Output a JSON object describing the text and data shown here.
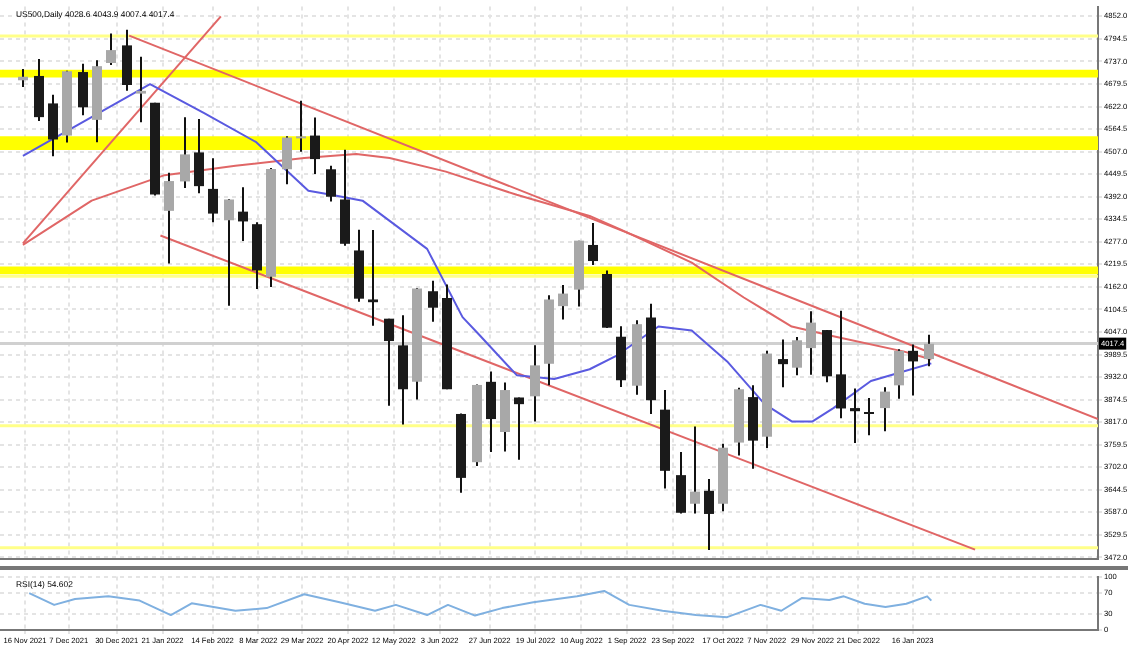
{
  "chart_data": [
    {
      "type": "candlestick",
      "title": "US500,Daily 4028.6 4043.9 4007.4 4017.4",
      "x": [
        "2021-11-15",
        "2021-11-22",
        "2021-11-29",
        "2021-12-06",
        "2021-12-13",
        "2021-12-20",
        "2021-12-27",
        "2022-01-03",
        "2022-01-10",
        "2022-01-17",
        "2022-01-24",
        "2022-01-31",
        "2022-02-07",
        "2022-02-14",
        "2022-02-21",
        "2022-02-28",
        "2022-03-07",
        "2022-03-14",
        "2022-03-21",
        "2022-03-28",
        "2022-04-04",
        "2022-04-11",
        "2022-04-18",
        "2022-04-25",
        "2022-05-02",
        "2022-05-09",
        "2022-05-16",
        "2022-05-23",
        "2022-05-30",
        "2022-06-06",
        "2022-06-13",
        "2022-06-20",
        "2022-06-27",
        "2022-07-04",
        "2022-07-11",
        "2022-07-18",
        "2022-07-25",
        "2022-08-01",
        "2022-08-08",
        "2022-08-15",
        "2022-08-22",
        "2022-08-29",
        "2022-09-05",
        "2022-09-12",
        "2022-09-19",
        "2022-09-26",
        "2022-10-03",
        "2022-10-10",
        "2022-10-17",
        "2022-10-24",
        "2022-10-31",
        "2022-11-07",
        "2022-11-14",
        "2022-11-21",
        "2022-11-28",
        "2022-12-05",
        "2022-12-12",
        "2022-12-19",
        "2022-12-26",
        "2023-01-02",
        "2023-01-09",
        "2023-01-16",
        "2023-01-23"
      ],
      "ohlc": [
        [
          4689,
          4718,
          4672,
          4698
        ],
        [
          4700,
          4743,
          4585,
          4595
        ],
        [
          4630,
          4652,
          4495,
          4538
        ],
        [
          4548,
          4713,
          4530,
          4712
        ],
        [
          4710,
          4731,
          4600,
          4620
        ],
        [
          4588,
          4740,
          4531,
          4725
        ],
        [
          4733,
          4808,
          4728,
          4766
        ],
        [
          4778,
          4818,
          4662,
          4677
        ],
        [
          4655,
          4749,
          4582,
          4662
        ],
        [
          4632,
          4632,
          4395,
          4398
        ],
        [
          4356,
          4453,
          4222,
          4432
        ],
        [
          4431,
          4595,
          4414,
          4500
        ],
        [
          4505,
          4590,
          4401,
          4419
        ],
        [
          4412,
          4490,
          4327,
          4349
        ],
        [
          4332,
          4386,
          4114,
          4385
        ],
        [
          4354,
          4416,
          4279,
          4329
        ],
        [
          4322,
          4327,
          4157,
          4204
        ],
        [
          4188,
          4465,
          4162,
          4463
        ],
        [
          4462,
          4546,
          4424,
          4543
        ],
        [
          4541,
          4637,
          4507,
          4546
        ],
        [
          4548,
          4594,
          4450,
          4488
        ],
        [
          4462,
          4471,
          4380,
          4392
        ],
        [
          4385,
          4512,
          4267,
          4272
        ],
        [
          4255,
          4308,
          4124,
          4132
        ],
        [
          4130,
          4307,
          4063,
          4123
        ],
        [
          4081,
          4081,
          3859,
          4024
        ],
        [
          4013,
          4090,
          3811,
          3901
        ],
        [
          3920,
          4159,
          3875,
          4158
        ],
        [
          4151,
          4178,
          4073,
          4109
        ],
        [
          4134,
          4168,
          3901,
          3901
        ],
        [
          3838,
          3839,
          3637,
          3675
        ],
        [
          3715,
          3913,
          3705,
          3912
        ],
        [
          3920,
          3946,
          3741,
          3825
        ],
        [
          3792,
          3918,
          3742,
          3899
        ],
        [
          3880,
          3880,
          3721,
          3863
        ],
        [
          3883,
          4013,
          3819,
          3962
        ],
        [
          3966,
          4141,
          3911,
          4130
        ],
        [
          4113,
          4167,
          4079,
          4145
        ],
        [
          4155,
          4280,
          4112,
          4280
        ],
        [
          4269,
          4325,
          4218,
          4228
        ],
        [
          4195,
          4204,
          4057,
          4058
        ],
        [
          4035,
          4062,
          3907,
          3924
        ],
        [
          3910,
          4077,
          3887,
          4067
        ],
        [
          4084,
          4119,
          3838,
          3873
        ],
        [
          3849,
          3899,
          3648,
          3693
        ],
        [
          3682,
          3741,
          3584,
          3586
        ],
        [
          3609,
          3806,
          3584,
          3640
        ],
        [
          3642,
          3672,
          3491,
          3583
        ],
        [
          3609,
          3762,
          3590,
          3752
        ],
        [
          3765,
          3905,
          3732,
          3901
        ],
        [
          3881,
          3911,
          3698,
          3770
        ],
        [
          3780,
          3999,
          3751,
          3992
        ],
        [
          3978,
          4028,
          3906,
          3965
        ],
        [
          3956,
          4034,
          3937,
          4026
        ],
        [
          4006,
          4100,
          3938,
          4071
        ],
        [
          4052,
          4052,
          3919,
          3934
        ],
        [
          3939,
          4101,
          3827,
          3852
        ],
        [
          3853,
          3903,
          3764,
          3845
        ],
        [
          3843,
          3879,
          3784,
          3839
        ],
        [
          3853,
          3906,
          3794,
          3895
        ],
        [
          3911,
          4003,
          3877,
          3999
        ],
        [
          3999,
          4015,
          3885,
          3972
        ],
        [
          3978,
          4040,
          3960,
          4017
        ]
      ],
      "colors": [
        "#a8a8a8",
        "#1a1a1a",
        "#1a1a1a",
        "#a8a8a8",
        "#1a1a1a",
        "#a8a8a8",
        "#a8a8a8",
        "#1a1a1a",
        "#a8a8a8",
        "#1a1a1a",
        "#a8a8a8",
        "#a8a8a8",
        "#1a1a1a",
        "#1a1a1a",
        "#a8a8a8",
        "#1a1a1a",
        "#1a1a1a",
        "#a8a8a8",
        "#a8a8a8",
        "#a8a8a8",
        "#1a1a1a",
        "#1a1a1a",
        "#1a1a1a",
        "#1a1a1a",
        "#1a1a1a",
        "#1a1a1a",
        "#1a1a1a",
        "#a8a8a8",
        "#1a1a1a",
        "#1a1a1a",
        "#1a1a1a",
        "#a8a8a8",
        "#1a1a1a",
        "#a8a8a8",
        "#1a1a1a",
        "#a8a8a8",
        "#a8a8a8",
        "#a8a8a8",
        "#a8a8a8",
        "#1a1a1a",
        "#1a1a1a",
        "#1a1a1a",
        "#a8a8a8",
        "#1a1a1a",
        "#1a1a1a",
        "#1a1a1a",
        "#a8a8a8",
        "#1a1a1a",
        "#a8a8a8",
        "#a8a8a8",
        "#1a1a1a",
        "#a8a8a8",
        "#1a1a1a",
        "#a8a8a8",
        "#a8a8a8",
        "#1a1a1a",
        "#1a1a1a",
        "#1a1a1a",
        "#1a1a1a",
        "#a8a8a8",
        "#a8a8a8",
        "#1a1a1a",
        "#a8a8a8"
      ],
      "series": [
        {
          "type": "line",
          "color": "#5a5ae0",
          "x": [
            "2021-11-15",
            "2022-01-15",
            "2022-02-10",
            "2022-03-07",
            "2022-04-01",
            "2022-04-12",
            "2022-04-27",
            "2022-05-28",
            "2022-06-14",
            "2022-06-22",
            "2022-07-10",
            "2022-07-28",
            "2022-08-14",
            "2022-08-27",
            "2022-09-16",
            "2022-10-02",
            "2022-10-19",
            "2022-11-06",
            "2022-11-19",
            "2022-11-29",
            "2022-12-09",
            "2022-12-27",
            "2023-01-12",
            "2023-01-25"
          ],
          "values": [
            4496,
            4679,
            4605,
            4531,
            4407,
            4397,
            4382,
            4259,
            4085,
            4040,
            3937,
            3927,
            3952,
            3987,
            4061,
            4051,
            3972,
            3863,
            3819,
            3819,
            3853,
            3922,
            3947,
            3967
          ]
        },
        {
          "type": "line",
          "color": "#e06666",
          "x": [
            "2021-11-15",
            "2021-12-18",
            "2022-01-22",
            "2022-02-25",
            "2022-03-30",
            "2022-04-24",
            "2022-05-10",
            "2022-06-06",
            "2022-07-10",
            "2022-08-14",
            "2022-08-29",
            "2022-10-02",
            "2022-10-27",
            "2022-11-19",
            "2022-12-09",
            "2023-01-12",
            "2023-01-25"
          ],
          "values": [
            4269,
            4382,
            4447,
            4471,
            4491,
            4501,
            4491,
            4456,
            4397,
            4343,
            4308,
            4224,
            4135,
            4061,
            4036,
            3997,
            3977
          ]
        },
        {
          "type": "line",
          "color": "#e06666",
          "x": [
            "2022-01-05",
            "2023-04-15"
          ],
          "values": [
            4803,
            3825
          ]
        },
        {
          "type": "line",
          "color": "#e06666",
          "x": [
            "2022-01-20",
            "2023-02-15"
          ],
          "values": [
            4293,
            3492
          ]
        },
        {
          "type": "line",
          "color": "#e06666",
          "x": [
            "2021-11-15",
            "2022-02-18"
          ],
          "values": [
            4273,
            4852
          ]
        }
      ],
      "xlim": [
        "2021-11-04",
        "2023-04-15"
      ],
      "xticks": [
        {
          "value": "2021-11-16",
          "label": null
        },
        {
          "value": "2021-12-07",
          "label": null
        },
        {
          "value": "2021-12-30",
          "label": null
        },
        {
          "value": "2022-01-21",
          "label": null
        },
        {
          "value": "2022-02-14",
          "label": null
        },
        {
          "value": "2022-03-08",
          "label": null
        },
        {
          "value": "2022-03-29",
          "label": null
        },
        {
          "value": "2022-04-20",
          "label": null
        },
        {
          "value": "2022-05-12",
          "label": null
        },
        {
          "value": "2022-06-03",
          "label": null
        },
        {
          "value": "2022-06-27",
          "label": null
        },
        {
          "value": "2022-07-19",
          "label": null
        },
        {
          "value": "2022-08-10",
          "label": null
        },
        {
          "value": "2022-09-01",
          "label": null
        },
        {
          "value": "2022-09-23",
          "label": null
        },
        {
          "value": "2022-10-17",
          "label": null
        },
        {
          "value": "2022-11-07",
          "label": null
        },
        {
          "value": "2022-11-29",
          "label": null
        },
        {
          "value": "2022-12-21",
          "label": null
        },
        {
          "value": "2023-01-16",
          "label": null
        }
      ],
      "ylim": [
        3467,
        4877
      ],
      "yticks": [
        {
          "value": 4852,
          "label": "4852.0"
        },
        {
          "value": 4794.5,
          "label": "4794.5"
        },
        {
          "value": 4737,
          "label": "4737.0"
        },
        {
          "value": 4679.5,
          "label": "4679.5"
        },
        {
          "value": 4622,
          "label": "4622.0"
        },
        {
          "value": 4564.5,
          "label": "4564.5"
        },
        {
          "value": 4507,
          "label": "4507.0"
        },
        {
          "value": 4449.5,
          "label": "4449.5"
        },
        {
          "value": 4392,
          "label": "4392.0"
        },
        {
          "value": 4334.5,
          "label": "4334.5"
        },
        {
          "value": 4277,
          "label": "4277.0"
        },
        {
          "value": 4219.5,
          "label": "4219.5"
        },
        {
          "value": 4162,
          "label": "4162.0"
        },
        {
          "value": 4104.5,
          "label": "4104.5"
        },
        {
          "value": 4047,
          "label": "4047.0"
        },
        {
          "value": 3989.5,
          "label": "3989.5"
        },
        {
          "value": 3932,
          "label": "3932.0"
        },
        {
          "value": 3874.5,
          "label": "3874.5"
        },
        {
          "value": 3817,
          "label": "3817.0"
        },
        {
          "value": 3759.5,
          "label": "3759.5"
        },
        {
          "value": 3702,
          "label": "3702.0"
        },
        {
          "value": 3644.5,
          "label": "3644.5"
        },
        {
          "value": 3587,
          "label": "3587.0"
        },
        {
          "value": 3529.5,
          "label": "3529.5"
        },
        {
          "value": 3472,
          "label": "3472.0"
        }
      ],
      "tick_labels": "y",
      "grid": true,
      "bands": [
        {
          "axis": "y",
          "from": 4696,
          "to": 4716,
          "color": "#ffff00"
        },
        {
          "axis": "y",
          "from": 4511,
          "to": 4546,
          "color": "#ffff00"
        },
        {
          "axis": "y",
          "from": 4194,
          "to": 4214,
          "color": "#ffff00"
        }
      ],
      "ref_lines": [
        {
          "axis": "y",
          "value": 4802,
          "color": "#ffff88"
        },
        {
          "axis": "y",
          "value": 4189,
          "color": "#ffff88"
        },
        {
          "axis": "y",
          "value": 3808,
          "color": "#ffff88"
        },
        {
          "axis": "y",
          "value": 3497,
          "color": "#ffff88"
        },
        {
          "axis": "y",
          "value": 4017.4,
          "label": "4017.4",
          "color": "#d0d0d0"
        }
      ]
    },
    {
      "type": "line",
      "title": "RSI(14) 54.602",
      "series": [
        {
          "color": "#7fb0e0",
          "x": [
            "2021-11-18",
            "2021-11-30",
            "2021-12-10",
            "2021-12-26",
            "2022-01-10",
            "2022-01-25",
            "2022-02-04",
            "2022-02-25",
            "2022-03-12",
            "2022-03-30",
            "2022-04-16",
            "2022-05-03",
            "2022-05-13",
            "2022-05-28",
            "2022-06-07",
            "2022-06-20",
            "2022-07-03",
            "2022-07-18",
            "2022-08-08",
            "2022-08-21",
            "2022-09-02",
            "2022-09-18",
            "2022-10-04",
            "2022-10-19",
            "2022-11-04",
            "2022-11-14",
            "2022-11-24",
            "2022-12-07",
            "2022-12-14",
            "2022-12-24",
            "2023-01-03",
            "2023-01-13",
            "2023-01-23",
            "2023-01-25"
          ],
          "values": [
            69,
            47,
            58,
            63,
            55,
            28,
            50,
            36,
            41,
            67,
            52,
            36,
            47,
            28,
            47,
            27,
            41,
            52,
            63,
            73,
            47,
            36,
            28,
            24,
            47,
            36,
            60,
            56,
            63,
            49,
            43,
            49,
            63,
            55
          ]
        }
      ],
      "xlim": [
        "2021-11-04",
        "2023-04-15"
      ],
      "xticks": [
        {
          "value": "2021-11-16",
          "label": "16 Nov 2021"
        },
        {
          "value": "2021-12-07",
          "label": "7 Dec 2021"
        },
        {
          "value": "2021-12-30",
          "label": "30 Dec 2021"
        },
        {
          "value": "2022-01-21",
          "label": "21 Jan 2022"
        },
        {
          "value": "2022-02-14",
          "label": "14 Feb 2022"
        },
        {
          "value": "2022-03-08",
          "label": "8 Mar 2022"
        },
        {
          "value": "2022-03-29",
          "label": "29 Mar 2022"
        },
        {
          "value": "2022-04-20",
          "label": "20 Apr 2022"
        },
        {
          "value": "2022-05-12",
          "label": "12 May 2022"
        },
        {
          "value": "2022-06-03",
          "label": "3 Jun 2022"
        },
        {
          "value": "2022-06-27",
          "label": "27 Jun 2022"
        },
        {
          "value": "2022-07-19",
          "label": "19 Jul 2022"
        },
        {
          "value": "2022-08-10",
          "label": "10 Aug 2022"
        },
        {
          "value": "2022-09-01",
          "label": "1 Sep 2022"
        },
        {
          "value": "2022-09-23",
          "label": "23 Sep 2022"
        },
        {
          "value": "2022-10-17",
          "label": "17 Oct 2022"
        },
        {
          "value": "2022-11-07",
          "label": "7 Nov 2022"
        },
        {
          "value": "2022-11-29",
          "label": "29 Nov 2022"
        },
        {
          "value": "2022-12-21",
          "label": "21 Dec 2022"
        },
        {
          "value": "2023-01-16",
          "label": "16 Jan 2023"
        }
      ],
      "ylim": [
        0,
        100
      ],
      "yticks": [
        0,
        30,
        70,
        100
      ],
      "grid": true
    }
  ]
}
